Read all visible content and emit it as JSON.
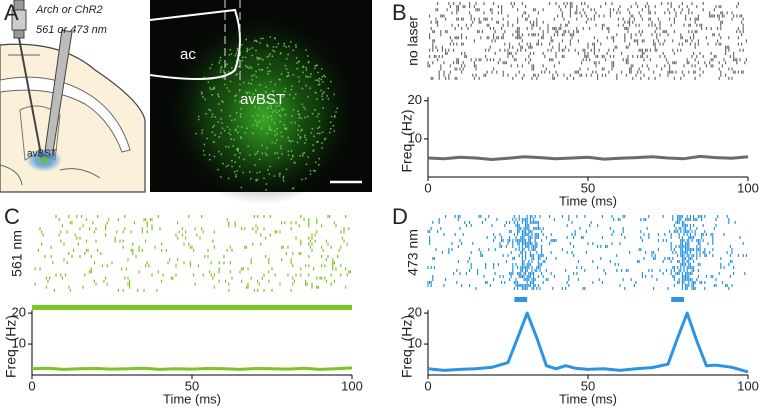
{
  "panel_a": {
    "letter": "A",
    "opsin": "Arch or ChR2",
    "wavelength": "561 or 473 nm",
    "schematic_region": "avBST",
    "image_ac": "ac",
    "image_region": "avBST"
  },
  "chart_data": [
    {
      "type": "line",
      "panel": "B",
      "raster_label": "no laser",
      "color": "#6b6b6b",
      "x": [
        0,
        5,
        10,
        15,
        20,
        25,
        30,
        35,
        40,
        45,
        50,
        55,
        60,
        65,
        70,
        75,
        80,
        85,
        90,
        95,
        100
      ],
      "values": [
        5,
        4.8,
        5.2,
        5,
        4.6,
        4.9,
        5.3,
        5.1,
        4.8,
        5,
        5.2,
        4.7,
        4.9,
        5.1,
        5.3,
        5,
        4.8,
        5.4,
        5.1,
        4.9,
        5.3
      ],
      "xlim": [
        0,
        100
      ],
      "ylim": [
        0,
        21
      ],
      "xticks": [
        0,
        50,
        100
      ],
      "yticks": [
        10,
        20
      ],
      "xlabel": "Time (ms)",
      "ylabel": "Freq. (Hz)"
    },
    {
      "type": "line",
      "panel": "C",
      "raster_label": "561 nm",
      "color": "#7dc520",
      "x": [
        0,
        5,
        10,
        15,
        20,
        25,
        30,
        35,
        40,
        45,
        50,
        55,
        60,
        65,
        70,
        75,
        80,
        85,
        90,
        95,
        100
      ],
      "values": [
        2,
        2.2,
        1.8,
        2,
        2.1,
        1.9,
        2,
        2.2,
        1.8,
        2,
        1.9,
        2.1,
        2,
        1.8,
        2.1,
        2,
        1.9,
        2.2,
        1.8,
        2,
        2.3
      ],
      "laser": [
        [
          0,
          100
        ]
      ],
      "xlim": [
        0,
        100
      ],
      "ylim": [
        0,
        21
      ],
      "xticks": [
        0,
        50,
        100
      ],
      "yticks": [
        10,
        20
      ],
      "xlabel": "Time (ms)",
      "ylabel": "Freq. (Hz)"
    },
    {
      "type": "line",
      "panel": "D",
      "raster_label": "473 nm",
      "color": "#2b94e3",
      "x": [
        0,
        5,
        10,
        15,
        20,
        25,
        28,
        31,
        34,
        37,
        40,
        43,
        46,
        50,
        55,
        60,
        65,
        70,
        75,
        78,
        81,
        84,
        87,
        90,
        95,
        100
      ],
      "values": [
        2,
        1.5,
        1.8,
        2,
        2.5,
        4,
        12,
        20,
        12,
        3,
        2,
        3,
        2.2,
        1.8,
        2,
        1.5,
        2,
        2.4,
        3.5,
        12,
        20,
        11,
        3,
        3.2,
        2.5,
        1
      ],
      "laser": [
        [
          27,
          31
        ],
        [
          76,
          80
        ]
      ],
      "xlim": [
        0,
        100
      ],
      "ylim": [
        0,
        21
      ],
      "xticks": [
        0,
        50,
        100
      ],
      "yticks": [
        10,
        20
      ],
      "xlabel": "Time (ms)",
      "ylabel": "Freq. (Hz)"
    }
  ]
}
